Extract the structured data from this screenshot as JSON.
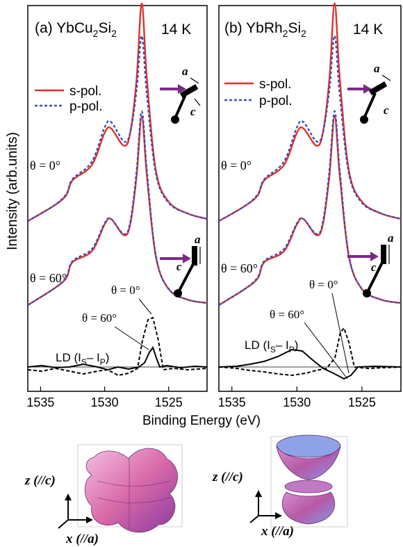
{
  "xlabel": "Binding Energy (eV)",
  "ylabel": "Intensity (arb.units)",
  "colors": {
    "s_pol": "#e0302a",
    "p_pol": "#3b4fb8",
    "arrow": "#7a2a86"
  },
  "panels": [
    {
      "tag": "(a)",
      "compound": "YbCu",
      "sub1": "2",
      "mid": "Si",
      "sub2": "2",
      "temp": "14 K"
    },
    {
      "tag": "(b)",
      "compound": "YbRh",
      "sub1": "2",
      "mid": "Si",
      "sub2": "2",
      "temp": "14 K"
    }
  ],
  "legend": {
    "s": "s-pol.",
    "p": "p-pol."
  },
  "annotations": {
    "theta0": "θ = 0°",
    "theta60": "θ = 60°",
    "theta0_b": "θ = 0°",
    "theta60_b": "θ = 60°",
    "ld_prefix": "LD (I",
    "ld_s": "S",
    "ld_mid": "– I",
    "ld_p": "P",
    "ld_suffix": ")"
  },
  "crystal": {
    "a": "a",
    "c": "c"
  },
  "orbital_axes": {
    "z": "z (//c)",
    "x": "x (//a)"
  },
  "chart_data": [
    {
      "type": "line",
      "title": "(a) YbCu2Si2 14 K",
      "xlabel": "Binding Energy (eV)",
      "ylabel": "Intensity (arb.units)",
      "xlim": [
        1536,
        1522
      ],
      "xticks": [
        1535,
        1530,
        1525
      ],
      "series": [
        {
          "name": "s-pol.",
          "condition": "θ = 0°",
          "x": [
            1536,
            1534,
            1533,
            1532.5,
            1531,
            1530,
            1529.5,
            1528.5,
            1528,
            1527.5,
            1527.1,
            1526.7,
            1526,
            1525,
            1523.5,
            1522
          ],
          "y": [
            0.98,
            1.12,
            1.22,
            1.36,
            1.5,
            1.8,
            1.84,
            1.68,
            1.8,
            2.3,
            3.0,
            2.3,
            1.45,
            1.16,
            1.05,
            1.0
          ]
        },
        {
          "name": "p-pol.",
          "condition": "θ = 0°",
          "x": [
            1536,
            1534,
            1533,
            1532.5,
            1531,
            1530,
            1529.5,
            1528.5,
            1528,
            1527.5,
            1527.1,
            1526.7,
            1526,
            1525,
            1523.5,
            1522
          ],
          "y": [
            0.98,
            1.12,
            1.23,
            1.37,
            1.53,
            1.85,
            1.9,
            1.72,
            1.8,
            2.2,
            2.7,
            2.15,
            1.42,
            1.15,
            1.05,
            1.0
          ]
        },
        {
          "name": "s-pol.",
          "condition": "θ = 60°",
          "x": [
            1536,
            1534,
            1533,
            1532.5,
            1531,
            1530,
            1529.5,
            1528.5,
            1528,
            1527.5,
            1527.1,
            1526.7,
            1526,
            1525,
            1523.5,
            1522
          ],
          "y": [
            0.2,
            0.35,
            0.45,
            0.6,
            0.7,
            0.95,
            1.0,
            0.85,
            0.95,
            1.4,
            1.95,
            1.4,
            0.65,
            0.35,
            0.25,
            0.22
          ]
        },
        {
          "name": "p-pol.",
          "condition": "θ = 60°",
          "x": [
            1536,
            1534,
            1533,
            1532.5,
            1531,
            1530,
            1529.5,
            1528.5,
            1528,
            1527.5,
            1527.1,
            1526.7,
            1526,
            1525,
            1523.5,
            1522
          ],
          "y": [
            0.2,
            0.35,
            0.46,
            0.61,
            0.72,
            0.96,
            1.0,
            0.86,
            0.97,
            1.45,
            2.0,
            1.45,
            0.66,
            0.35,
            0.25,
            0.22
          ]
        }
      ]
    },
    {
      "type": "line",
      "title": "(b) YbRh2Si2 14 K",
      "xlabel": "Binding Energy (eV)",
      "ylabel": "Intensity (arb.units)",
      "xlim": [
        1536,
        1522
      ],
      "xticks": [
        1535,
        1530,
        1525
      ],
      "series": [
        {
          "name": "s-pol.",
          "condition": "θ = 0°",
          "x": [
            1536,
            1534,
            1533,
            1532.5,
            1531,
            1530,
            1529.5,
            1528.5,
            1528,
            1527.5,
            1527.1,
            1526.7,
            1526,
            1525,
            1523.5,
            1522
          ],
          "y": [
            0.98,
            1.12,
            1.22,
            1.36,
            1.5,
            1.8,
            1.84,
            1.68,
            1.8,
            2.3,
            3.0,
            2.3,
            1.45,
            1.16,
            1.05,
            1.0
          ]
        },
        {
          "name": "p-pol.",
          "condition": "θ = 0°",
          "x": [
            1536,
            1534,
            1533,
            1532.5,
            1531,
            1530,
            1529.5,
            1528.5,
            1528,
            1527.5,
            1527.1,
            1526.7,
            1526,
            1525,
            1523.5,
            1522
          ],
          "y": [
            0.98,
            1.12,
            1.23,
            1.37,
            1.53,
            1.85,
            1.9,
            1.72,
            1.8,
            2.2,
            2.7,
            2.15,
            1.42,
            1.15,
            1.05,
            1.0
          ]
        },
        {
          "name": "s-pol.",
          "condition": "θ = 60°",
          "x": [
            1536,
            1534,
            1533,
            1532.5,
            1531,
            1530,
            1529.5,
            1528.5,
            1528,
            1527.5,
            1527.1,
            1526.7,
            1526,
            1525,
            1523.5,
            1522
          ],
          "y": [
            0.2,
            0.35,
            0.45,
            0.6,
            0.7,
            0.95,
            1.0,
            0.85,
            0.95,
            1.4,
            1.95,
            1.4,
            0.65,
            0.35,
            0.25,
            0.22
          ]
        },
        {
          "name": "p-pol.",
          "condition": "θ = 60°",
          "x": [
            1536,
            1534,
            1533,
            1532.5,
            1531,
            1530,
            1529.5,
            1528.5,
            1528,
            1527.5,
            1527.1,
            1526.7,
            1526,
            1525,
            1523.5,
            1522
          ],
          "y": [
            0.2,
            0.35,
            0.46,
            0.61,
            0.72,
            0.96,
            1.0,
            0.86,
            0.97,
            1.45,
            2.0,
            1.45,
            0.66,
            0.35,
            0.25,
            0.22
          ]
        }
      ]
    }
  ]
}
